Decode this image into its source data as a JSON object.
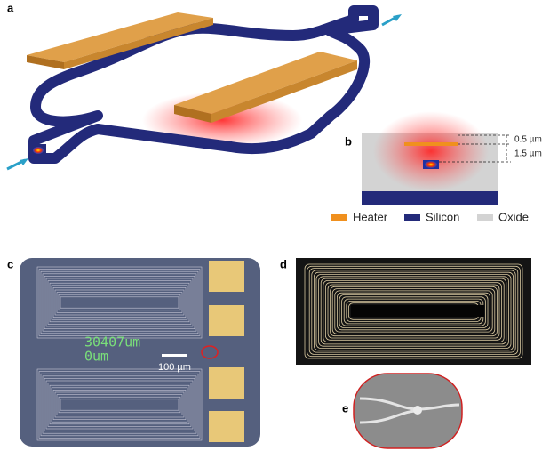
{
  "panels": {
    "a": "a",
    "b": "b",
    "c": "c",
    "d": "d",
    "e": "e"
  },
  "cross_section": {
    "dims": [
      "0.5 µm",
      "1.5 µm"
    ]
  },
  "legend": [
    "Heater",
    "Silicon",
    "Oxide"
  ],
  "micrograph": {
    "stage_text": [
      "30407um",
      "0um"
    ],
    "scale_bar": "100 µm"
  }
}
